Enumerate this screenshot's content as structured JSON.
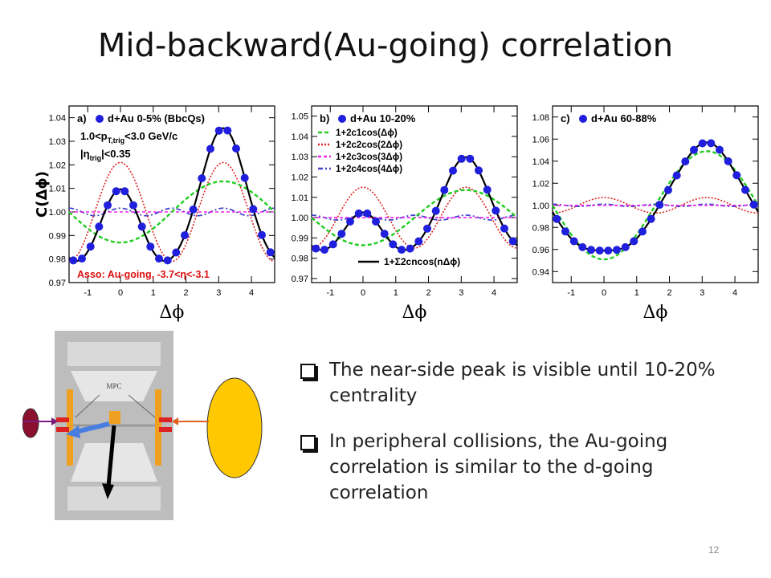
{
  "title": "Mid-backward(Au-going) correlation",
  "page_number": "12",
  "bullets": [
    "The near-side peak is visible until 10-20% centrality",
    "In peripheral collisions, the Au-going correlation is similar to the d-going correlation"
  ],
  "detector_label": "MPC",
  "colors": {
    "data_points": "#1f1fdd",
    "fit_total": "#000000",
    "c1": "#22cc22",
    "c2": "#dd2222",
    "c3": "#ee22ee",
    "c4": "#4444cc",
    "annotation_red": "#dd1111"
  },
  "chart_data": [
    {
      "type": "scatter",
      "panel_label": "a)",
      "legend_title": "d+Au 0-5% (BbcQs)",
      "texts": [
        "1.0<p",
        "T,trig",
        "<3.0 GeV/c",
        "|η",
        "trig",
        "|<0.35",
        "Asso: Au-going, -3.7<η<-3.1"
      ],
      "ylabel": "C(Δϕ)",
      "xlabel": "Δϕ",
      "xlim": [
        -1.57,
        4.71
      ],
      "ylim": [
        0.97,
        1.045
      ],
      "yticks": [
        "0.97",
        "0.98",
        "0.99",
        "1.00",
        "1.01",
        "1.02",
        "1.03",
        "1.04"
      ],
      "xticks": [
        "-1",
        "0",
        "1",
        "2",
        "3",
        "4"
      ],
      "params": {
        "c0": 1.0,
        "c1": -0.0065,
        "c2": 0.0105,
        "c3": 0.0,
        "c4": 0.0008
      }
    },
    {
      "type": "scatter",
      "panel_label": "b)",
      "legend_title": "d+Au 10-20%",
      "legend": [
        "1+2c1cos(Δϕ)",
        "1+2c2cos(2Δϕ)",
        "1+2c3cos(3Δϕ)",
        "1+2c4cos(4Δϕ)",
        "1+Σ2cncos(nΔϕ)"
      ],
      "xlabel": "Δϕ",
      "xlim": [
        -1.57,
        4.71
      ],
      "ylim": [
        0.968,
        1.055
      ],
      "yticks": [
        "0.97",
        "0.98",
        "0.99",
        "1.00",
        "1.01",
        "1.02",
        "1.03",
        "1.04",
        "1.05"
      ],
      "xticks": [
        "-1",
        "0",
        "1",
        "2",
        "3",
        "4"
      ],
      "params": {
        "c0": 1.0,
        "c1": -0.0068,
        "c2": 0.0075,
        "c3": 0.0,
        "c4": 0.0006
      }
    },
    {
      "type": "scatter",
      "panel_label": "c)",
      "legend_title": "d+Au 60-88%",
      "xlabel": "Δϕ",
      "xlim": [
        -1.57,
        4.71
      ],
      "ylim": [
        0.93,
        1.09
      ],
      "yticks": [
        "0.94",
        "0.96",
        "0.98",
        "1.00",
        "1.02",
        "1.04",
        "1.06",
        "1.08"
      ],
      "xticks": [
        "-1",
        "0",
        "1",
        "2",
        "3",
        "4"
      ],
      "params": {
        "c0": 1.0,
        "c1": -0.0245,
        "c2": 0.0035,
        "c3": 0.0,
        "c4": 0.0005
      }
    }
  ]
}
